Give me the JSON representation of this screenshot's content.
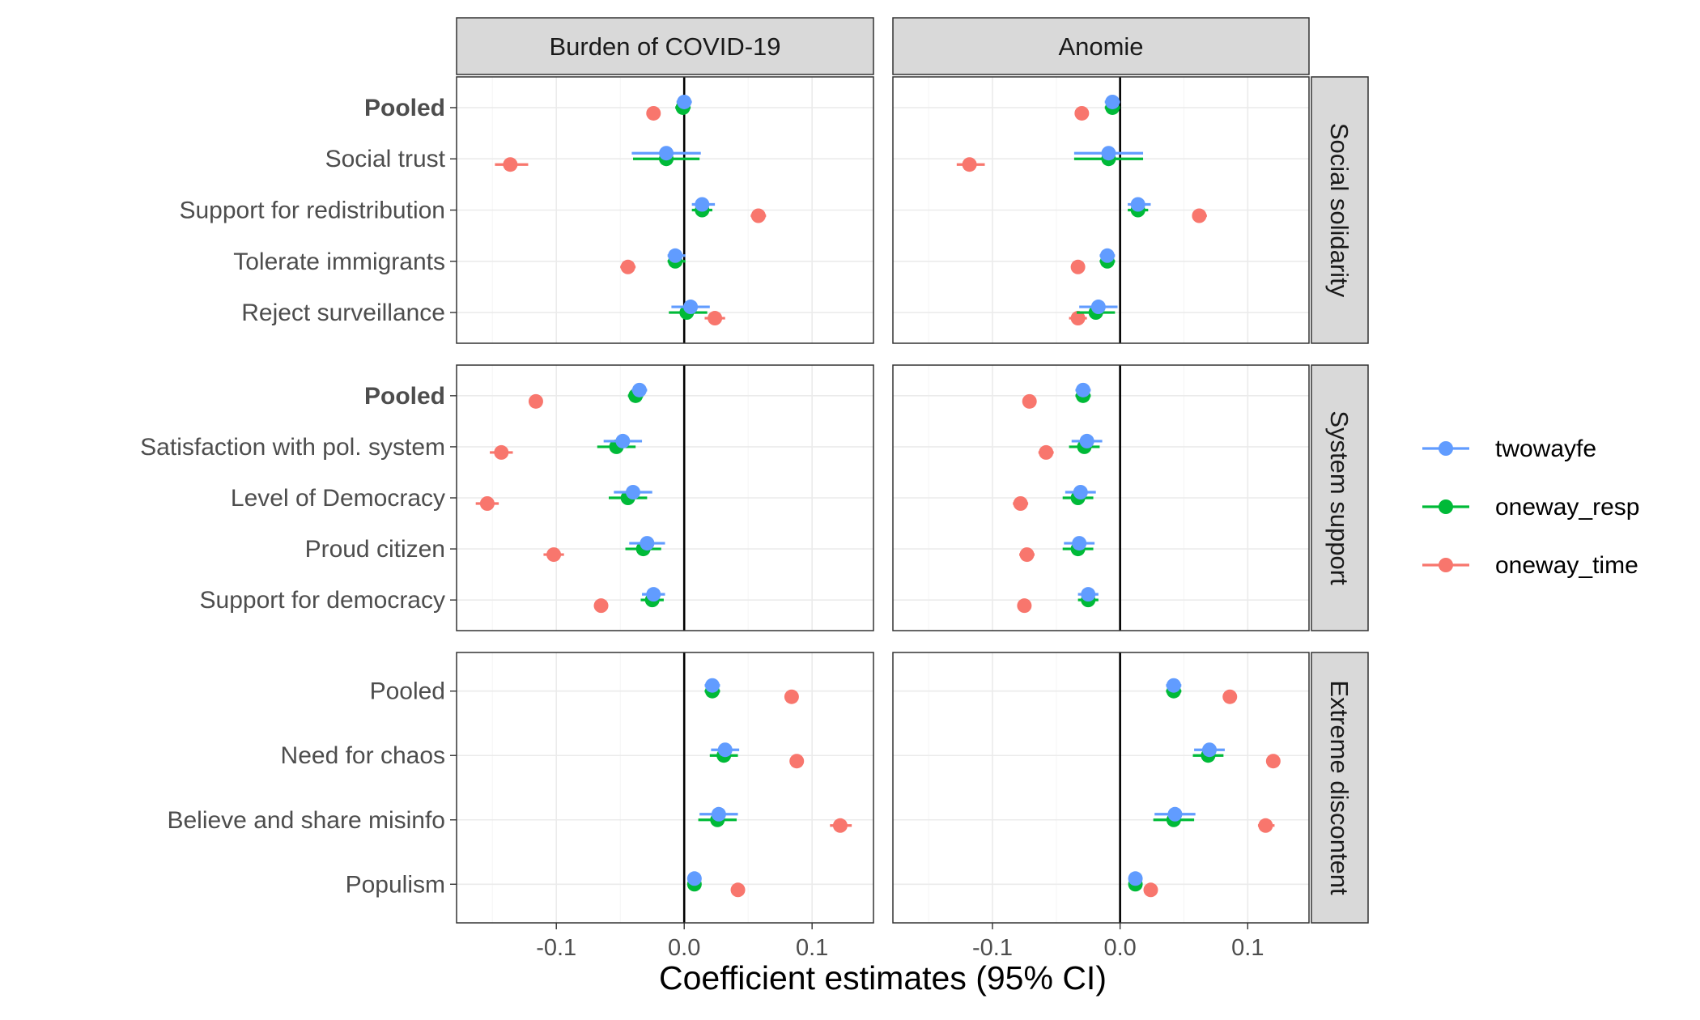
{
  "chart_data": {
    "type": "scatter",
    "subtype": "faceted coefficient plot with 95% CI error bars",
    "xlabel": "Coefficient estimates (95% CI)",
    "x_ticks": [
      "-0.1",
      "0.0",
      "0.1"
    ],
    "x_tick_values": [
      -0.1,
      0.0,
      0.1
    ],
    "xlim": [
      -0.178,
      0.148
    ],
    "reference_line": 0,
    "grid": true,
    "legend_position": "right",
    "columns": [
      "Burden of COVID-19",
      "Anomie"
    ],
    "rows": [
      "Social solidarity",
      "System support",
      "Extreme discontent"
    ],
    "series": [
      {
        "name": "twowayfe",
        "color": "#619CFF"
      },
      {
        "name": "oneway_resp",
        "color": "#00BA38"
      },
      {
        "name": "oneway_time",
        "color": "#F8766D"
      }
    ],
    "panels": [
      {
        "row": "Social solidarity",
        "items": [
          {
            "label": "Pooled",
            "bold": true,
            "values": [
              {
                "twowayfe": [
                  0.0,
                  -0.006,
                  0.006
                ],
                "oneway_resp": [
                  -0.001,
                  -0.007,
                  0.005
                ],
                "oneway_time": [
                  -0.024,
                  -0.028,
                  -0.02
                ]
              },
              {
                "twowayfe": [
                  -0.006,
                  -0.012,
                  0.0
                ],
                "oneway_resp": [
                  -0.006,
                  -0.012,
                  0.0
                ],
                "oneway_time": [
                  -0.03,
                  -0.034,
                  -0.026
                ]
              }
            ]
          },
          {
            "label": "Social trust",
            "bold": false,
            "values": [
              {
                "twowayfe": [
                  -0.014,
                  -0.041,
                  0.013
                ],
                "oneway_resp": [
                  -0.014,
                  -0.04,
                  0.012
                ],
                "oneway_time": [
                  -0.136,
                  -0.148,
                  -0.122
                ]
              },
              {
                "twowayfe": [
                  -0.009,
                  -0.036,
                  0.018
                ],
                "oneway_resp": [
                  -0.009,
                  -0.036,
                  0.018
                ],
                "oneway_time": [
                  -0.118,
                  -0.128,
                  -0.106
                ]
              }
            ]
          },
          {
            "label": "Support for redistribution",
            "bold": false,
            "values": [
              {
                "twowayfe": [
                  0.014,
                  0.006,
                  0.024
                ],
                "oneway_resp": [
                  0.014,
                  0.006,
                  0.022
                ],
                "oneway_time": [
                  0.058,
                  0.052,
                  0.064
                ]
              },
              {
                "twowayfe": [
                  0.014,
                  0.006,
                  0.024
                ],
                "oneway_resp": [
                  0.014,
                  0.006,
                  0.022
                ],
                "oneway_time": [
                  0.062,
                  0.058,
                  0.068
                ]
              }
            ]
          },
          {
            "label": "Tolerate immigrants",
            "bold": false,
            "values": [
              {
                "twowayfe": [
                  -0.007,
                  -0.013,
                  0.001
                ],
                "oneway_resp": [
                  -0.007,
                  -0.013,
                  0.001
                ],
                "oneway_time": [
                  -0.044,
                  -0.05,
                  -0.038
                ]
              },
              {
                "twowayfe": [
                  -0.01,
                  -0.016,
                  -0.004
                ],
                "oneway_resp": [
                  -0.01,
                  -0.016,
                  -0.004
                ],
                "oneway_time": [
                  -0.033,
                  -0.037,
                  -0.029
                ]
              }
            ]
          },
          {
            "label": "Reject surveillance",
            "bold": false,
            "values": [
              {
                "twowayfe": [
                  0.005,
                  -0.01,
                  0.02
                ],
                "oneway_resp": [
                  0.002,
                  -0.012,
                  0.018
                ],
                "oneway_time": [
                  0.024,
                  0.016,
                  0.032
                ]
              },
              {
                "twowayfe": [
                  -0.017,
                  -0.032,
                  -0.002
                ],
                "oneway_resp": [
                  -0.019,
                  -0.034,
                  -0.004
                ],
                "oneway_time": [
                  -0.033,
                  -0.04,
                  -0.026
                ]
              }
            ]
          }
        ]
      },
      {
        "row": "System support",
        "items": [
          {
            "label": "Pooled",
            "bold": true,
            "values": [
              {
                "twowayfe": [
                  -0.035,
                  -0.041,
                  -0.029
                ],
                "oneway_resp": [
                  -0.038,
                  -0.044,
                  -0.032
                ],
                "oneway_time": [
                  -0.116,
                  -0.12,
                  -0.112
                ]
              },
              {
                "twowayfe": [
                  -0.029,
                  -0.035,
                  -0.023
                ],
                "oneway_resp": [
                  -0.029,
                  -0.035,
                  -0.023
                ],
                "oneway_time": [
                  -0.071,
                  -0.075,
                  -0.067
                ]
              }
            ]
          },
          {
            "label": "Satisfaction with pol. system",
            "bold": false,
            "values": [
              {
                "twowayfe": [
                  -0.048,
                  -0.063,
                  -0.033
                ],
                "oneway_resp": [
                  -0.053,
                  -0.068,
                  -0.038
                ],
                "oneway_time": [
                  -0.143,
                  -0.152,
                  -0.134
                ]
              },
              {
                "twowayfe": [
                  -0.026,
                  -0.038,
                  -0.014
                ],
                "oneway_resp": [
                  -0.028,
                  -0.04,
                  -0.016
                ],
                "oneway_time": [
                  -0.058,
                  -0.064,
                  -0.052
                ]
              }
            ]
          },
          {
            "label": "Level of Democracy",
            "bold": false,
            "values": [
              {
                "twowayfe": [
                  -0.04,
                  -0.055,
                  -0.025
                ],
                "oneway_resp": [
                  -0.044,
                  -0.059,
                  -0.029
                ],
                "oneway_time": [
                  -0.154,
                  -0.163,
                  -0.145
                ]
              },
              {
                "twowayfe": [
                  -0.031,
                  -0.043,
                  -0.019
                ],
                "oneway_resp": [
                  -0.033,
                  -0.045,
                  -0.021
                ],
                "oneway_time": [
                  -0.078,
                  -0.084,
                  -0.072
                ]
              }
            ]
          },
          {
            "label": "Proud citizen",
            "bold": false,
            "values": [
              {
                "twowayfe": [
                  -0.029,
                  -0.043,
                  -0.015
                ],
                "oneway_resp": [
                  -0.032,
                  -0.046,
                  -0.018
                ],
                "oneway_time": [
                  -0.102,
                  -0.11,
                  -0.094
                ]
              },
              {
                "twowayfe": [
                  -0.032,
                  -0.044,
                  -0.02
                ],
                "oneway_resp": [
                  -0.033,
                  -0.045,
                  -0.021
                ],
                "oneway_time": [
                  -0.073,
                  -0.079,
                  -0.067
                ]
              }
            ]
          },
          {
            "label": "Support for democracy",
            "bold": false,
            "values": [
              {
                "twowayfe": [
                  -0.024,
                  -0.033,
                  -0.015
                ],
                "oneway_resp": [
                  -0.025,
                  -0.034,
                  -0.016
                ],
                "oneway_time": [
                  -0.065,
                  -0.07,
                  -0.06
                ]
              },
              {
                "twowayfe": [
                  -0.025,
                  -0.033,
                  -0.017
                ],
                "oneway_resp": [
                  -0.025,
                  -0.033,
                  -0.017
                ],
                "oneway_time": [
                  -0.075,
                  -0.079,
                  -0.071
                ]
              }
            ]
          }
        ]
      },
      {
        "row": "Extreme discontent",
        "items": [
          {
            "label": "Pooled",
            "bold": false,
            "values": [
              {
                "twowayfe": [
                  0.022,
                  0.016,
                  0.028
                ],
                "oneway_resp": [
                  0.022,
                  0.016,
                  0.028
                ],
                "oneway_time": [
                  0.084,
                  0.08,
                  0.088
                ]
              },
              {
                "twowayfe": [
                  0.042,
                  0.036,
                  0.048
                ],
                "oneway_resp": [
                  0.042,
                  0.036,
                  0.048
                ],
                "oneway_time": [
                  0.086,
                  0.082,
                  0.09
                ]
              }
            ]
          },
          {
            "label": "Need for chaos",
            "bold": false,
            "values": [
              {
                "twowayfe": [
                  0.032,
                  0.021,
                  0.043
                ],
                "oneway_resp": [
                  0.031,
                  0.02,
                  0.042
                ],
                "oneway_time": [
                  0.088,
                  0.084,
                  0.092
                ]
              },
              {
                "twowayfe": [
                  0.07,
                  0.058,
                  0.082
                ],
                "oneway_resp": [
                  0.069,
                  0.057,
                  0.081
                ],
                "oneway_time": [
                  0.12,
                  0.116,
                  0.124
                ]
              }
            ]
          },
          {
            "label": "Believe and share misinfo",
            "bold": false,
            "values": [
              {
                "twowayfe": [
                  0.027,
                  0.012,
                  0.042
                ],
                "oneway_resp": [
                  0.026,
                  0.011,
                  0.041
                ],
                "oneway_time": [
                  0.122,
                  0.114,
                  0.131
                ]
              },
              {
                "twowayfe": [
                  0.043,
                  0.027,
                  0.059
                ],
                "oneway_resp": [
                  0.042,
                  0.026,
                  0.058
                ],
                "oneway_time": [
                  0.114,
                  0.108,
                  0.121
                ]
              }
            ]
          },
          {
            "label": "Populism",
            "bold": false,
            "values": [
              {
                "twowayfe": [
                  0.008,
                  0.004,
                  0.012
                ],
                "oneway_resp": [
                  0.008,
                  0.004,
                  0.012
                ],
                "oneway_time": [
                  0.042,
                  0.039,
                  0.045
                ]
              },
              {
                "twowayfe": [
                  0.012,
                  0.008,
                  0.016
                ],
                "oneway_resp": [
                  0.012,
                  0.008,
                  0.016
                ],
                "oneway_time": [
                  0.024,
                  0.021,
                  0.027
                ]
              }
            ]
          }
        ]
      }
    ]
  }
}
